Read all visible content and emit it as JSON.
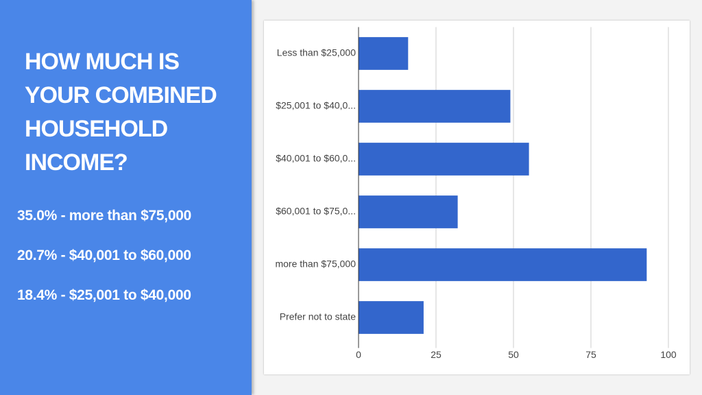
{
  "slide": {
    "title": "HOW MUCH IS YOUR COMBINED HOUSEHOLD INCOME?",
    "stats": [
      "35.0% - more than $75,000",
      "20.7% - $40,001 to $60,000",
      "18.4% - $25,001 to $40,000"
    ]
  },
  "chart_data": {
    "type": "bar",
    "orientation": "horizontal",
    "categories": [
      "Less than $25,000",
      "$25,001 to $40,0...",
      "$40,001 to $60,0...",
      "$60,001 to $75,0...",
      "more than $75,000",
      "Prefer not to state"
    ],
    "values": [
      16,
      49,
      55,
      32,
      93,
      21
    ],
    "color": "#3366cc",
    "xlim": [
      0,
      100
    ],
    "xticks": [
      0,
      25,
      50,
      75,
      100
    ],
    "grid": true
  }
}
